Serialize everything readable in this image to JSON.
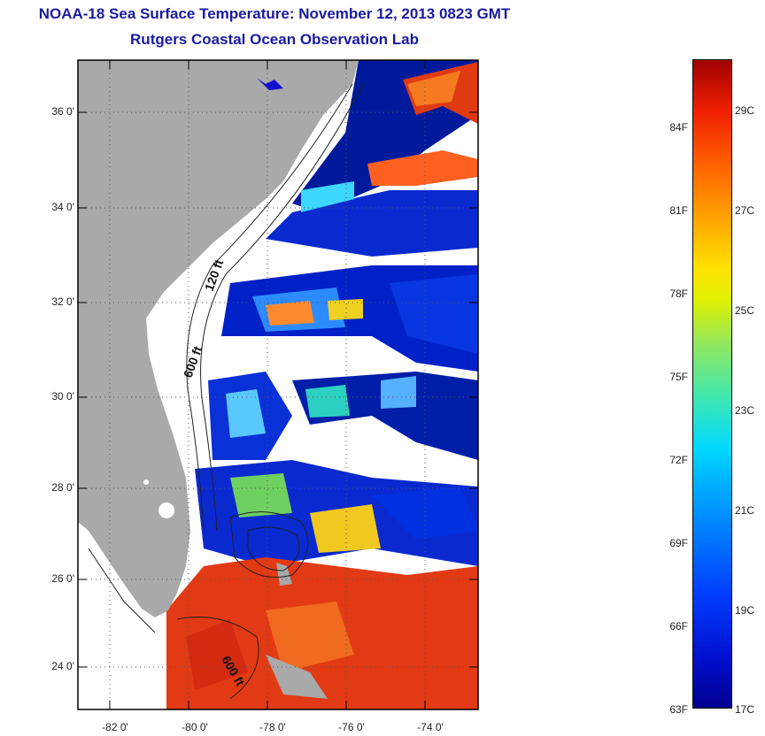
{
  "title": "NOAA-18 Sea Surface Temperature:  November 12, 2013 0823 GMT",
  "subtitle": "Rutgers Coastal Ocean Observation Lab",
  "lat_labels": [
    "36 0'",
    "34 0'",
    "32 0'",
    "30 0'",
    "28 0'",
    "26 0'",
    "24 0'"
  ],
  "lon_labels": [
    "-82 0'",
    "-80 0'",
    "-78 0'",
    "-76 0'",
    "-74 0'"
  ],
  "contour_labels": [
    "120 ft",
    "600 ft",
    "600 ft"
  ],
  "colorbar": {
    "fahrenheit": [
      "84F",
      "81F",
      "78F",
      "75F",
      "72F",
      "69F",
      "66F",
      "63F"
    ],
    "celsius": [
      "29C",
      "27C",
      "25C",
      "23C",
      "21C",
      "19C",
      "17C"
    ]
  },
  "colors": {
    "title": "#1a1aa0",
    "land": "#a9a9a9",
    "cloud": "#ffffff",
    "cold": "#000090",
    "warm": "#e03000"
  }
}
